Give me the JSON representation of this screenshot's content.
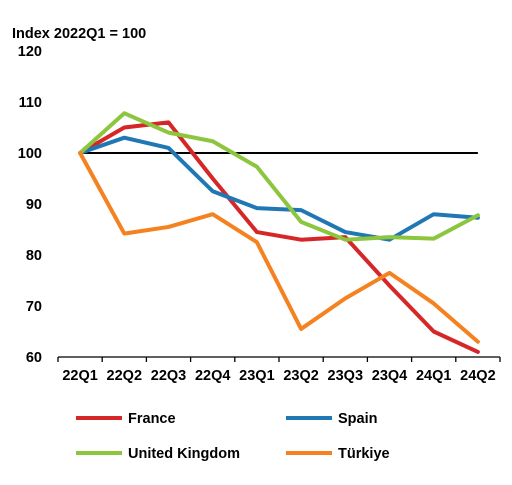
{
  "chart_data": {
    "type": "line",
    "title": "",
    "ylabel": "Index 2022Q1 = 100",
    "xlabel": "",
    "categories": [
      "22Q1",
      "22Q2",
      "22Q3",
      "22Q4",
      "23Q1",
      "23Q2",
      "23Q3",
      "23Q4",
      "24Q1",
      "24Q2"
    ],
    "ylim": [
      60,
      120
    ],
    "yticks": [
      "60",
      "70",
      "80",
      "90",
      "100",
      "110",
      "120"
    ],
    "reference_line": 100,
    "grid": false,
    "legend_position": "bottom",
    "series": [
      {
        "name": "France",
        "color": "#d62728",
        "values": [
          100,
          105,
          106,
          95,
          84.5,
          83,
          83.5,
          74,
          65,
          61
        ]
      },
      {
        "name": "Spain",
        "color": "#1f77b4",
        "values": [
          100,
          103,
          101,
          92.5,
          89.2,
          88.8,
          84.5,
          83,
          88,
          87.3
        ]
      },
      {
        "name": "United Kingdom",
        "color": "#8cc63f",
        "values": [
          100,
          107.8,
          104,
          102.3,
          97.3,
          86.5,
          83,
          83.5,
          83.2,
          87.8
        ]
      },
      {
        "name": "Türkiye",
        "color": "#f58220",
        "values": [
          100,
          84.2,
          85.5,
          88,
          82.5,
          65.5,
          71.5,
          76.5,
          70.5,
          63
        ]
      }
    ]
  }
}
